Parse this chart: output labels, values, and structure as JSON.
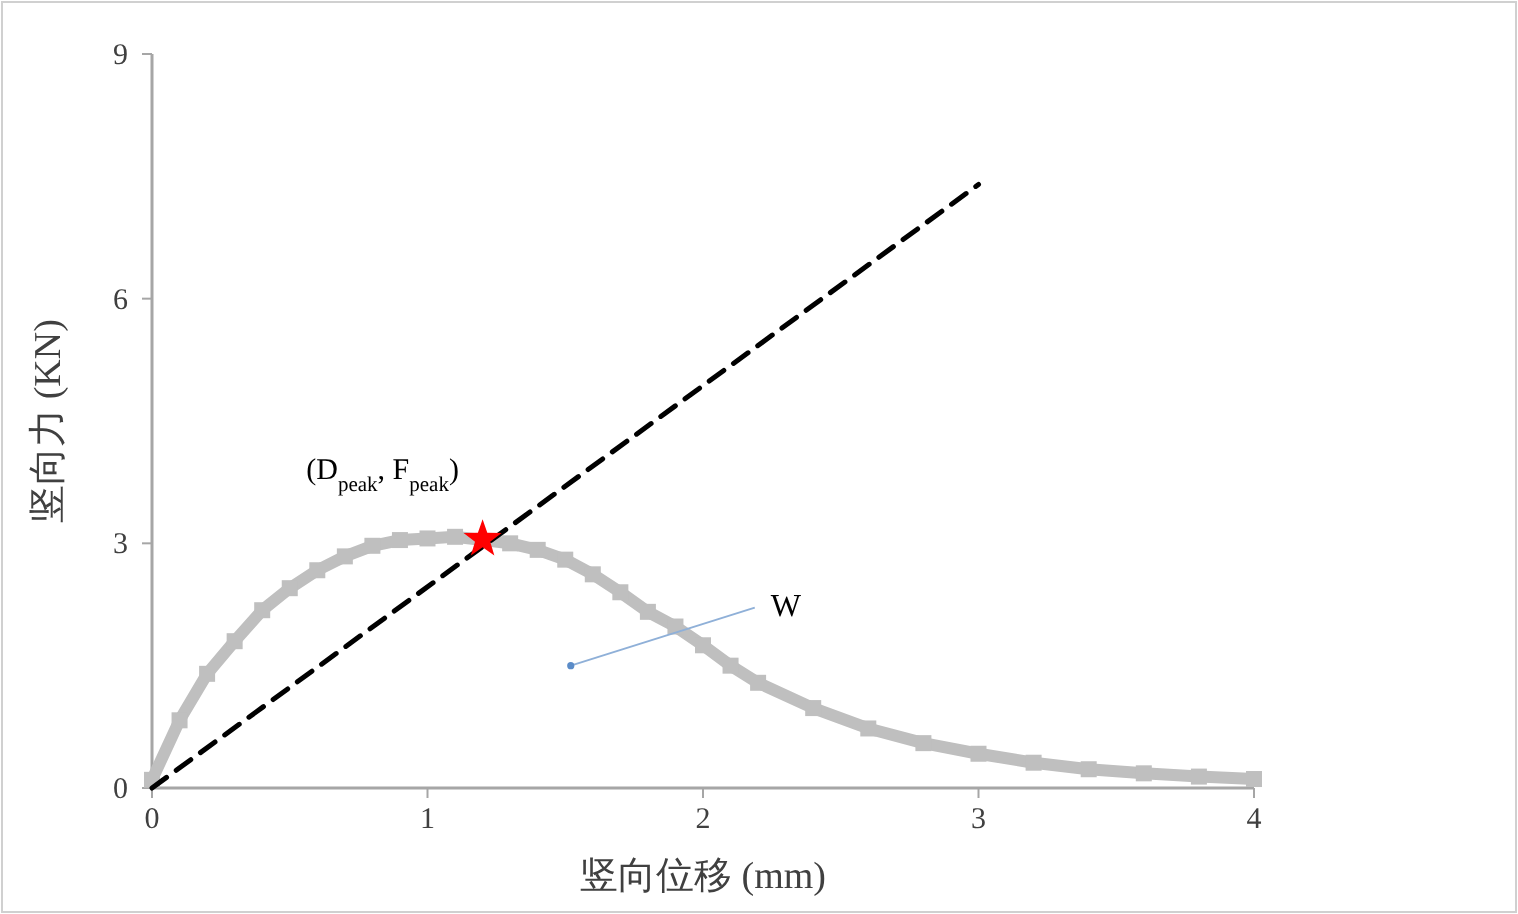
{
  "chart_data": {
    "type": "line",
    "xlabel": "竖向位移 (mm)",
    "ylabel": "竖向力 (KN)",
    "xlim": [
      0,
      4
    ],
    "ylim": [
      0,
      9
    ],
    "xticks": [
      0,
      1,
      2,
      3,
      4
    ],
    "yticks": [
      0,
      3,
      6,
      9
    ],
    "series": [
      {
        "type": "line",
        "color": "#bfbfbf",
        "marker": "square",
        "x": [
          0,
          0.1,
          0.2,
          0.3,
          0.4,
          0.5,
          0.6,
          0.7,
          0.8,
          0.9,
          1.0,
          1.1,
          1.3,
          1.4,
          1.5,
          1.6,
          1.7,
          1.8,
          1.9,
          2.0,
          2.1,
          2.2,
          2.4,
          2.6,
          2.8,
          3.0,
          3.2,
          3.4,
          3.6,
          3.8,
          4.0
        ],
        "values": [
          0.1,
          0.83,
          1.4,
          1.8,
          2.18,
          2.45,
          2.67,
          2.84,
          2.97,
          3.04,
          3.06,
          3.08,
          3.0,
          2.92,
          2.8,
          2.62,
          2.4,
          2.16,
          1.98,
          1.75,
          1.5,
          1.29,
          0.98,
          0.73,
          0.55,
          0.42,
          0.31,
          0.23,
          0.18,
          0.14,
          0.11
        ]
      },
      {
        "type": "line",
        "color": "#000000",
        "line_style": "dashed",
        "marker": "none",
        "x": [
          0,
          3
        ],
        "values": [
          0,
          7.4
        ]
      },
      {
        "type": "scatter",
        "color": "#ff0000",
        "marker": "star",
        "x": [
          1.2
        ],
        "values": [
          3.05
        ]
      }
    ],
    "annotations": [
      {
        "text": "(D$_{peak}$, F$_{peak}$)",
        "x": 1.2,
        "y": 3.05
      },
      {
        "text": "W",
        "x": 1.52,
        "y": 1.5
      }
    ]
  }
}
